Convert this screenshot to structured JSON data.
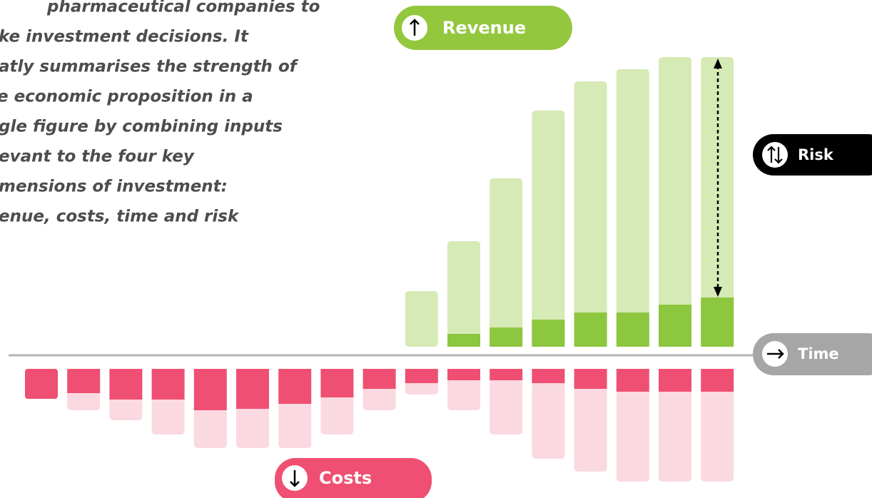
{
  "paragraph": [
    "pharmaceutical companies to",
    "ke investment decisions. It",
    "atly summarises the strength of",
    "e economic proposition in a",
    "gle figure by combining inputs",
    "evant to the four key",
    "mensions of investment:",
    "enue, costs, time and risk"
  ],
  "labels": {
    "revenue": "Revenue",
    "risk": "Risk",
    "time": "Time",
    "costs": "Costs"
  }
}
